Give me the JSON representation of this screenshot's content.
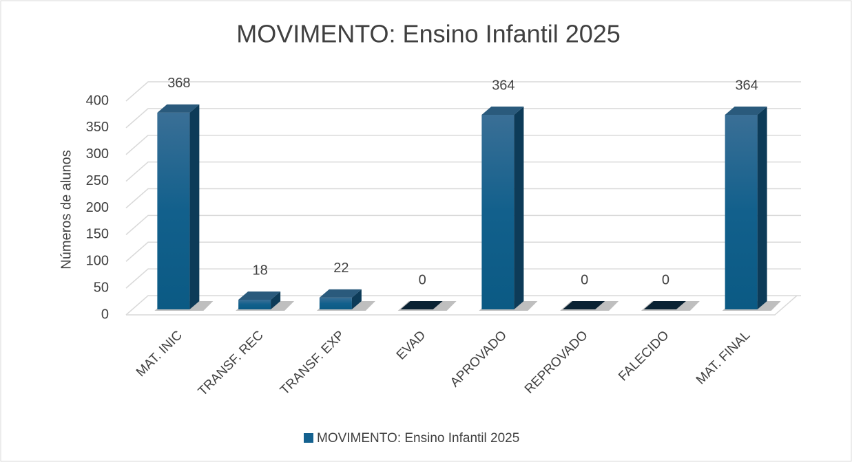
{
  "chart_data": {
    "type": "bar",
    "title": "MOVIMENTO: Ensino Infantil 2025",
    "y_label": "Números de alunos",
    "categories": [
      "MAT. INIC",
      "TRANSF. REC",
      "TRANSF. EXP",
      "EVAD",
      "APROVADO",
      "REPROVADO",
      "FALECIDO",
      "MAT. FINAL"
    ],
    "series": [
      {
        "name": "MOVIMENTO: Ensino Infantil 2025",
        "color": "#14618f",
        "values": [
          368,
          18,
          22,
          0,
          364,
          0,
          0,
          364
        ]
      }
    ],
    "ylim": [
      0,
      400
    ],
    "yticks": [
      0,
      50,
      100,
      150,
      200,
      250,
      300,
      350,
      400
    ],
    "grid": true,
    "legend": "bottom"
  }
}
